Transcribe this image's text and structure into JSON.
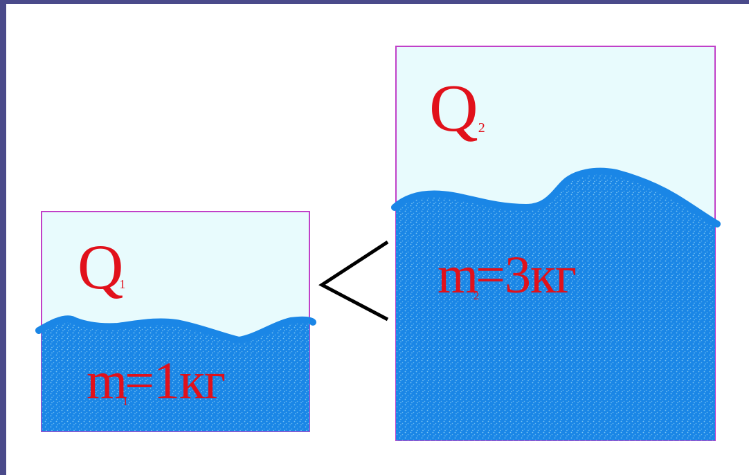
{
  "colors": {
    "frame": "#4a4a8a",
    "sky": "#e8fbfd",
    "border": "#c040c8",
    "water": "#1a86e6",
    "water_speck": "#7cc6f2",
    "text": "#e1111b",
    "sign": "#000000"
  },
  "container1": {
    "heat_symbol": "Q",
    "heat_sub": "1",
    "mass_symbol": "m",
    "mass_sub": "1",
    "mass_value": "=1кг"
  },
  "container2": {
    "heat_symbol": "Q",
    "heat_sub": "2",
    "mass_symbol": "m",
    "mass_sub": "2",
    "mass_value": "=3кг"
  },
  "comparison": {
    "sign_name": "less-than-sign"
  }
}
